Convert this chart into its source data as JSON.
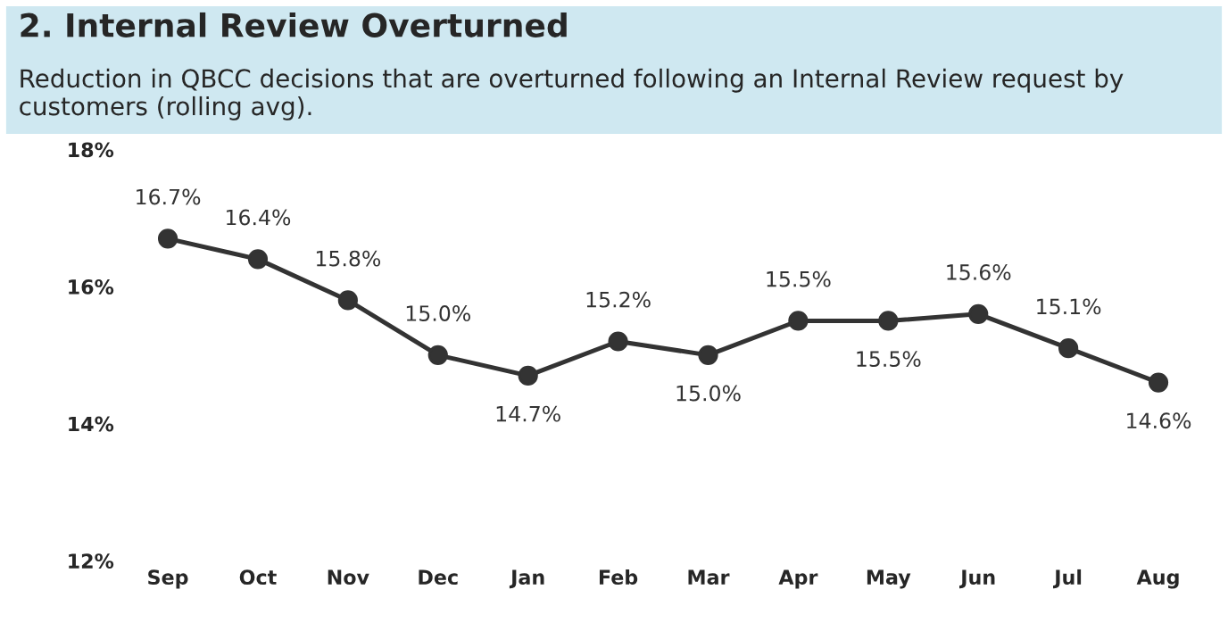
{
  "chart_data": {
    "type": "line",
    "title": "2. Internal Review Overturned",
    "subtitle": "Reduction in QBCC decisions that are overturned following an Internal Review request by customers (rolling avg).",
    "categories": [
      "Sep",
      "Oct",
      "Nov",
      "Dec",
      "Jan",
      "Feb",
      "Mar",
      "Apr",
      "May",
      "Jun",
      "Jul",
      "Aug"
    ],
    "series": [
      {
        "color": "#333333",
        "values": [
          16.7,
          16.4,
          15.8,
          15.0,
          14.7,
          15.2,
          15.0,
          15.5,
          15.5,
          15.6,
          15.1,
          14.6
        ],
        "value_labels": [
          "16.7%",
          "16.4%",
          "15.8%",
          "15.0%",
          "14.7%",
          "15.2%",
          "15.0%",
          "15.5%",
          "15.5%",
          "15.6%",
          "15.1%",
          "14.6%"
        ]
      }
    ],
    "ylim": [
      12,
      18
    ],
    "yticks": [
      {
        "value": 12,
        "label": "12%"
      },
      {
        "value": 14,
        "label": "14%"
      },
      {
        "value": 16,
        "label": "16%"
      },
      {
        "value": 18,
        "label": "18%"
      }
    ],
    "marker": "circle",
    "line_style": "solid",
    "grid": false,
    "legend": false
  }
}
